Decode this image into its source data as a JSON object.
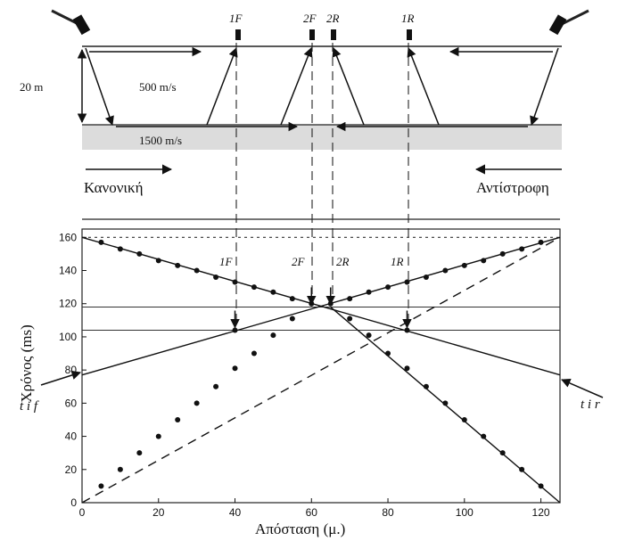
{
  "diagram": {
    "depth_label": "20 m",
    "upper_velocity": "500 m/s",
    "lower_velocity": "1500 m/s",
    "forward_label": "Κανονική",
    "reverse_label": "Αντίστροφη",
    "geophones": [
      {
        "label": "1F",
        "position_m": 40
      },
      {
        "label": "2F",
        "position_m": 60
      },
      {
        "label": "2R",
        "position_m": 65
      },
      {
        "label": "1R",
        "position_m": 85
      }
    ]
  },
  "chart_data": {
    "type": "line",
    "xlabel": "Απόσταση (μ.)",
    "ylabel": "Χρόνος (ms)",
    "xlim": [
      0,
      125
    ],
    "ylim": [
      0,
      165
    ],
    "x_ticks": [
      0,
      20,
      40,
      60,
      80,
      100,
      120
    ],
    "y_ticks": [
      0,
      20,
      40,
      60,
      80,
      100,
      120,
      140,
      160
    ],
    "series": [
      {
        "name": "",
        "style": "dashed",
        "x": [
          0,
          125
        ],
        "y": [
          0,
          160
        ]
      },
      {
        "name": "",
        "style": "solid",
        "x": [
          0,
          125
        ],
        "y": [
          77,
          160
        ]
      },
      {
        "name": "",
        "style": "solid",
        "x": [
          0,
          125
        ],
        "y": [
          160,
          77
        ]
      },
      {
        "name": "",
        "style": "solid",
        "x": [
          65,
          125
        ],
        "y": [
          118,
          0
        ]
      }
    ],
    "points": [
      {
        "x": 5,
        "y": 10
      },
      {
        "x": 10,
        "y": 20
      },
      {
        "x": 15,
        "y": 30
      },
      {
        "x": 20,
        "y": 40
      },
      {
        "x": 25,
        "y": 50
      },
      {
        "x": 30,
        "y": 60
      },
      {
        "x": 35,
        "y": 70
      },
      {
        "x": 40,
        "y": 81
      },
      {
        "x": 45,
        "y": 90
      },
      {
        "x": 50,
        "y": 101
      },
      {
        "x": 55,
        "y": 111
      },
      {
        "x": 5,
        "y": 157
      },
      {
        "x": 10,
        "y": 153
      },
      {
        "x": 15,
        "y": 150
      },
      {
        "x": 20,
        "y": 146
      },
      {
        "x": 25,
        "y": 143
      },
      {
        "x": 30,
        "y": 140
      },
      {
        "x": 35,
        "y": 136
      },
      {
        "x": 40,
        "y": 133
      },
      {
        "x": 45,
        "y": 130
      },
      {
        "x": 50,
        "y": 127
      },
      {
        "x": 55,
        "y": 123
      },
      {
        "x": 60,
        "y": 120
      },
      {
        "x": 40,
        "y": 104
      },
      {
        "x": 85,
        "y": 104
      },
      {
        "x": 65,
        "y": 120
      },
      {
        "x": 70,
        "y": 123
      },
      {
        "x": 75,
        "y": 127
      },
      {
        "x": 80,
        "y": 130
      },
      {
        "x": 85,
        "y": 133
      },
      {
        "x": 90,
        "y": 136
      },
      {
        "x": 95,
        "y": 140
      },
      {
        "x": 100,
        "y": 143
      },
      {
        "x": 105,
        "y": 146
      },
      {
        "x": 110,
        "y": 150
      },
      {
        "x": 115,
        "y": 153
      },
      {
        "x": 120,
        "y": 157
      },
      {
        "x": 70,
        "y": 111
      },
      {
        "x": 75,
        "y": 101
      },
      {
        "x": 80,
        "y": 90
      },
      {
        "x": 85,
        "y": 81
      },
      {
        "x": 90,
        "y": 70
      },
      {
        "x": 95,
        "y": 60
      },
      {
        "x": 100,
        "y": 50
      },
      {
        "x": 105,
        "y": 40
      },
      {
        "x": 110,
        "y": 30
      },
      {
        "x": 115,
        "y": 20
      },
      {
        "x": 120,
        "y": 10
      }
    ],
    "reference_lines_ms": [
      118,
      104
    ],
    "annotations": [
      {
        "label": "1F",
        "x": 40,
        "y": 104
      },
      {
        "label": "2F",
        "x": 60,
        "y": 118
      },
      {
        "label": "2R",
        "x": 65,
        "y": 118
      },
      {
        "label": "1R",
        "x": 85,
        "y": 104
      }
    ],
    "intercept_labels": [
      "t i f",
      "t i r"
    ]
  }
}
